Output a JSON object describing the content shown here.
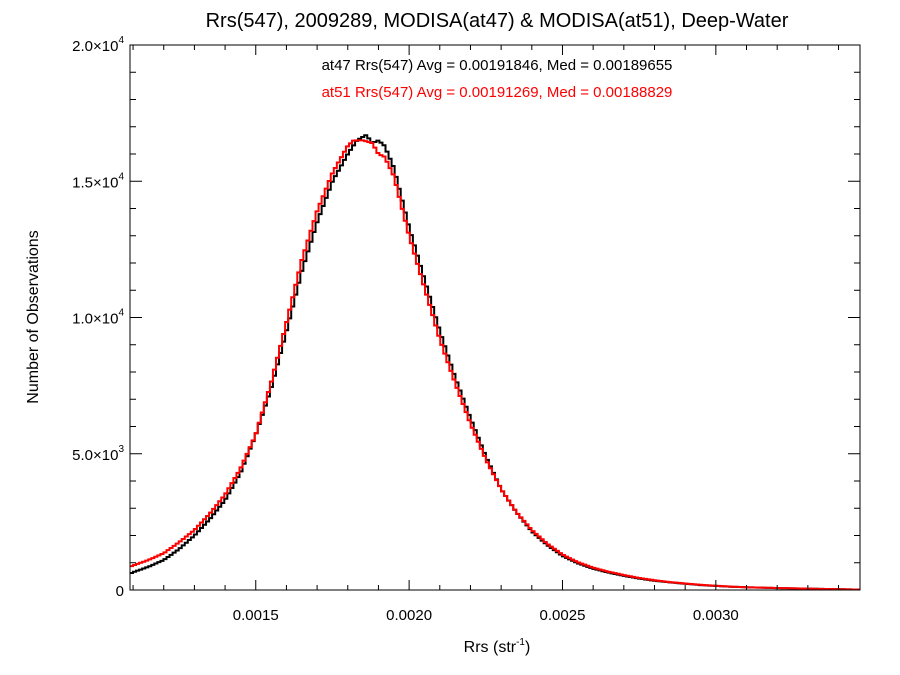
{
  "chart_data": {
    "type": "line",
    "title": "Rrs(547), 2009289, MODISA(at47) & MODISA(at51), Deep-Water",
    "xlabel_main": "Rrs (str",
    "xlabel_sup": "-1",
    "xlabel_close": ")",
    "ylabel": "Number of Observations",
    "xlim": [
      0.00109,
      0.00347
    ],
    "ylim": [
      0,
      20000
    ],
    "x_ticks": [
      {
        "value": 0.0015,
        "label": "0.0015"
      },
      {
        "value": 0.002,
        "label": "0.0020"
      },
      {
        "value": 0.0025,
        "label": "0.0025"
      },
      {
        "value": 0.003,
        "label": "0.0030"
      }
    ],
    "y_ticks": [
      {
        "value": 0,
        "mant": "0",
        "exp": ""
      },
      {
        "value": 5000,
        "mant": "5.0×10",
        "exp": "3"
      },
      {
        "value": 10000,
        "mant": "1.0×10",
        "exp": "4"
      },
      {
        "value": 15000,
        "mant": "1.5×10",
        "exp": "4"
      },
      {
        "value": 20000,
        "mant": "2.0×10",
        "exp": "4"
      }
    ],
    "grid": false,
    "annotations": [
      {
        "text": "at47 Rrs(547) Avg = 0.00191846, Med = 0.00189655",
        "color": "#000000"
      },
      {
        "text": "at51 Rrs(547) Avg = 0.00191269, Med = 0.00188829",
        "color": "#ff0000"
      }
    ],
    "series": [
      {
        "color": "#000000",
        "x": [
          0.00109,
          0.0011,
          0.00115,
          0.0012,
          0.00125,
          0.0013,
          0.00135,
          0.0014,
          0.00145,
          0.0015,
          0.00155,
          0.0016,
          0.00165,
          0.0017,
          0.00175,
          0.0018,
          0.00183,
          0.00186,
          0.00188,
          0.0019,
          0.00192,
          0.00195,
          0.002,
          0.00205,
          0.0021,
          0.00215,
          0.0022,
          0.00225,
          0.0023,
          0.00235,
          0.0024,
          0.00245,
          0.0025,
          0.00255,
          0.0026,
          0.00265,
          0.0027,
          0.00275,
          0.0028,
          0.00285,
          0.0029,
          0.00295,
          0.003,
          0.00305,
          0.0031,
          0.0032,
          0.0033,
          0.0034,
          0.00347
        ],
        "y": [
          600,
          650,
          850,
          1100,
          1500,
          2000,
          2600,
          3300,
          4300,
          5700,
          7400,
          9500,
          11700,
          13500,
          15000,
          16000,
          16500,
          16700,
          16400,
          16500,
          16300,
          15500,
          13300,
          11400,
          9500,
          7800,
          6300,
          4900,
          3700,
          2850,
          2150,
          1650,
          1250,
          980,
          780,
          640,
          520,
          420,
          340,
          280,
          230,
          180,
          150,
          120,
          100,
          70,
          50,
          30,
          15
        ]
      },
      {
        "color": "#ff0000",
        "x": [
          0.00109,
          0.0011,
          0.00115,
          0.0012,
          0.00125,
          0.0013,
          0.00135,
          0.0014,
          0.00145,
          0.0015,
          0.00155,
          0.0016,
          0.00165,
          0.0017,
          0.00175,
          0.0018,
          0.00182,
          0.00185,
          0.00188,
          0.0019,
          0.00192,
          0.00195,
          0.002,
          0.00205,
          0.0021,
          0.00215,
          0.0022,
          0.00225,
          0.0023,
          0.00235,
          0.0024,
          0.00245,
          0.0025,
          0.00255,
          0.0026,
          0.00265,
          0.0027,
          0.00275,
          0.0028,
          0.00285,
          0.0029,
          0.00295,
          0.003,
          0.00305,
          0.0031,
          0.0032,
          0.0033,
          0.0034,
          0.00347
        ],
        "y": [
          850,
          900,
          1100,
          1350,
          1750,
          2200,
          2800,
          3500,
          4450,
          5700,
          7600,
          9800,
          12100,
          13900,
          15300,
          16300,
          16500,
          16500,
          16400,
          16000,
          15900,
          15200,
          13000,
          11100,
          9200,
          7600,
          6100,
          4800,
          3700,
          2850,
          2200,
          1700,
          1300,
          1020,
          820,
          670,
          550,
          440,
          360,
          290,
          240,
          190,
          155,
          125,
          100,
          75,
          50,
          30,
          15
        ]
      }
    ]
  }
}
